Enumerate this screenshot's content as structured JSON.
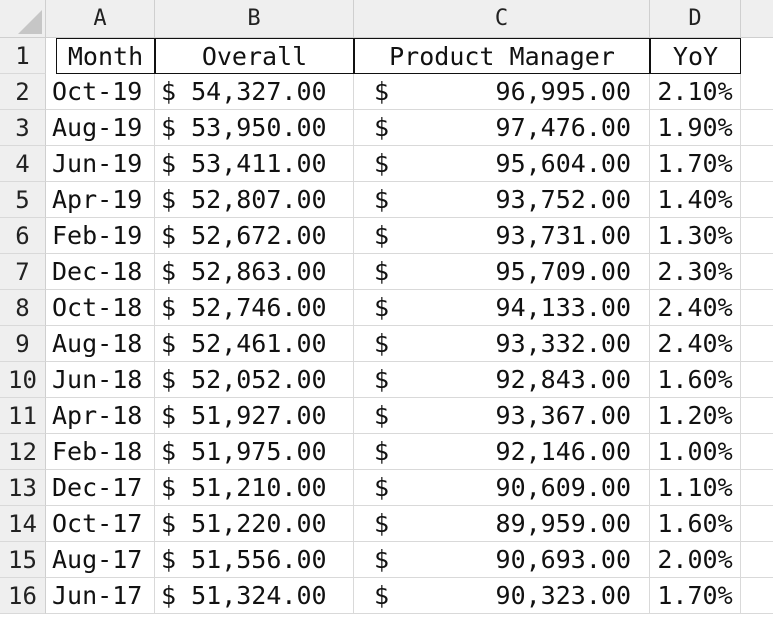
{
  "columns": [
    "A",
    "B",
    "C",
    "D"
  ],
  "header": [
    "Month",
    "Overall",
    "Product Manager",
    "YoY"
  ],
  "rows": [
    {
      "n": "2",
      "month": "Oct-19",
      "overall": "$ 54,327.00",
      "pm_symbol": "$",
      "pm_value": "96,995.00",
      "yoy": "2.10%"
    },
    {
      "n": "3",
      "month": "Aug-19",
      "overall": "$ 53,950.00",
      "pm_symbol": "$",
      "pm_value": "97,476.00",
      "yoy": "1.90%"
    },
    {
      "n": "4",
      "month": "Jun-19",
      "overall": "$ 53,411.00",
      "pm_symbol": "$",
      "pm_value": "95,604.00",
      "yoy": "1.70%"
    },
    {
      "n": "5",
      "month": "Apr-19",
      "overall": "$ 52,807.00",
      "pm_symbol": "$",
      "pm_value": "93,752.00",
      "yoy": "1.40%"
    },
    {
      "n": "6",
      "month": "Feb-19",
      "overall": "$ 52,672.00",
      "pm_symbol": "$",
      "pm_value": "93,731.00",
      "yoy": "1.30%"
    },
    {
      "n": "7",
      "month": "Dec-18",
      "overall": "$ 52,863.00",
      "pm_symbol": "$",
      "pm_value": "95,709.00",
      "yoy": "2.30%"
    },
    {
      "n": "8",
      "month": "Oct-18",
      "overall": "$ 52,746.00",
      "pm_symbol": "$",
      "pm_value": "94,133.00",
      "yoy": "2.40%"
    },
    {
      "n": "9",
      "month": "Aug-18",
      "overall": "$ 52,461.00",
      "pm_symbol": "$",
      "pm_value": "93,332.00",
      "yoy": "2.40%"
    },
    {
      "n": "10",
      "month": "Jun-18",
      "overall": "$ 52,052.00",
      "pm_symbol": "$",
      "pm_value": "92,843.00",
      "yoy": "1.60%"
    },
    {
      "n": "11",
      "month": "Apr-18",
      "overall": "$ 51,927.00",
      "pm_symbol": "$",
      "pm_value": "93,367.00",
      "yoy": "1.20%"
    },
    {
      "n": "12",
      "month": "Feb-18",
      "overall": "$ 51,975.00",
      "pm_symbol": "$",
      "pm_value": "92,146.00",
      "yoy": "1.00%"
    },
    {
      "n": "13",
      "month": "Dec-17",
      "overall": "$ 51,210.00",
      "pm_symbol": "$",
      "pm_value": "90,609.00",
      "yoy": "1.10%"
    },
    {
      "n": "14",
      "month": "Oct-17",
      "overall": "$ 51,220.00",
      "pm_symbol": "$",
      "pm_value": "89,959.00",
      "yoy": "1.60%"
    },
    {
      "n": "15",
      "month": "Aug-17",
      "overall": "$ 51,556.00",
      "pm_symbol": "$",
      "pm_value": "90,693.00",
      "yoy": "2.00%"
    },
    {
      "n": "16",
      "month": "Jun-17",
      "overall": "$ 51,324.00",
      "pm_symbol": "$",
      "pm_value": "90,323.00",
      "yoy": "1.70%"
    }
  ],
  "header_row_number": "1"
}
